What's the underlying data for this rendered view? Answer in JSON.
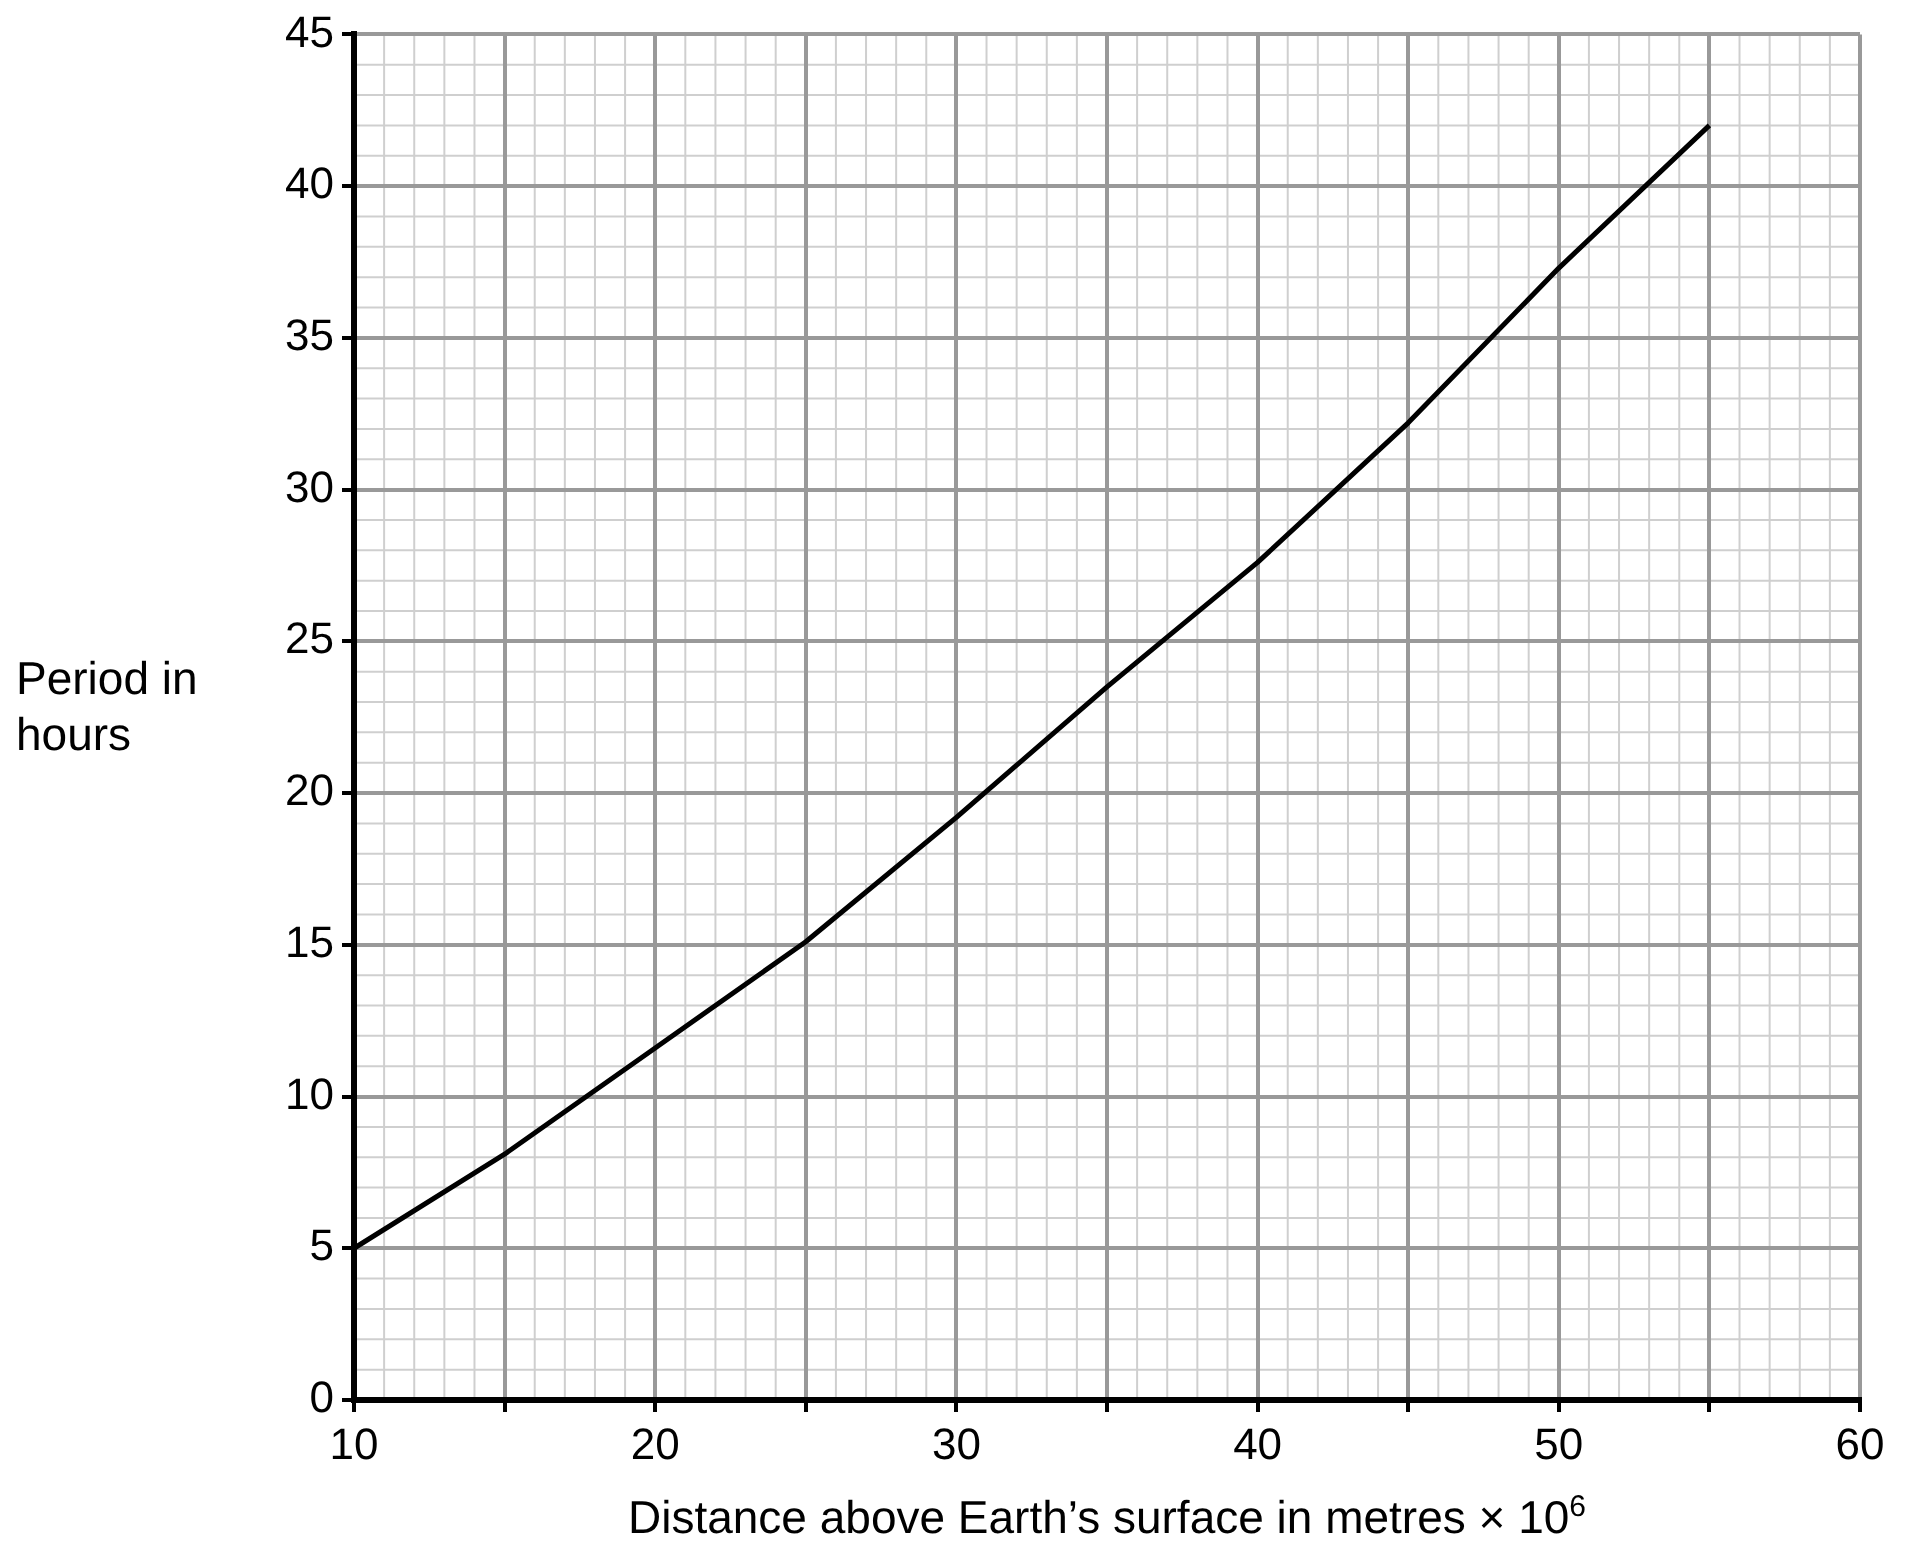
{
  "chart_data": {
    "type": "line",
    "xlabel": "Distance above Earth’s surface in metres × 10$^{6}$",
    "ylabel": "Period in hours",
    "x": [
      10,
      15,
      20,
      25,
      30,
      35,
      40,
      45,
      50,
      55
    ],
    "series": [
      {
        "color": "#000000",
        "values": [
          5,
          8.1,
          11.6,
          15.1,
          19.2,
          23.5,
          27.6,
          32.2,
          37.3,
          42.0
        ]
      }
    ],
    "xlim": [
      10,
      60
    ],
    "ylim": [
      0,
      45
    ],
    "xticks": [
      10,
      {
        "value": 15,
        "label": null
      },
      20,
      {
        "value": 25,
        "label": null
      },
      30,
      {
        "value": 35,
        "label": null
      },
      40,
      {
        "value": 45,
        "label": null
      },
      50,
      {
        "value": 55,
        "label": null
      },
      60
    ],
    "yticks": [
      0,
      5,
      10,
      15,
      20,
      25,
      30,
      35,
      40,
      45
    ],
    "grid": true,
    "legend": false,
    "marker": "none",
    "line_style": "solid"
  }
}
